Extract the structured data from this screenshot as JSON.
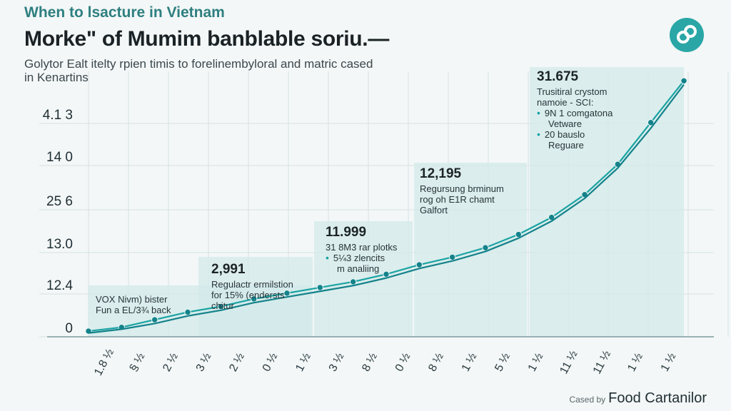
{
  "header": {
    "brand": "When to lsacture in Vietnam",
    "title": "Morke\" of Mumim banblable soriu.—",
    "subtitle_line1": "Golytor Ealt itelty rpien timis to forelinembyloral and matric cased",
    "subtitle_line2": "in Kenartins"
  },
  "footer": {
    "credit_prefix": "Cased by",
    "credit_name": "Food Cartanilor"
  },
  "colors": {
    "accent": "#1aa3a3",
    "accent_dark": "#14828a",
    "panel": "#d4eaea",
    "grid": "#d7e2e3"
  },
  "icons": {
    "logo": "link-circle-icon"
  },
  "chart_data": {
    "type": "line",
    "y_tick_labels": [
      "0",
      "12.4",
      "13.0",
      "25 6",
      "14 0",
      "4.1 3"
    ],
    "x_tick_labels": [
      "1.8 ½",
      "§ ½",
      "2 ½",
      "3 ½",
      "2 ½",
      "0 ½",
      "1 ½",
      "3 ½",
      "8 ½",
      "0 ½",
      "8 ½",
      "1 ½",
      "5 ½",
      "1 ½",
      "11 ½",
      "11 ½",
      "1 ½",
      "1 ½"
    ],
    "grid": true,
    "series": [
      {
        "values": [
          0.3,
          0.5,
          0.9,
          1.3,
          1.6,
          2.0,
          2.3,
          2.6,
          2.9,
          3.3,
          3.8,
          4.2,
          4.7,
          5.4,
          6.3,
          7.5,
          9.1,
          11.3,
          13.5
        ]
      },
      {
        "values": [
          0.2,
          0.4,
          0.7,
          1.1,
          1.4,
          1.8,
          2.1,
          2.4,
          2.7,
          3.1,
          3.6,
          4.0,
          4.5,
          5.2,
          6.1,
          7.3,
          8.9,
          11.0,
          13.3
        ]
      }
    ],
    "annotations": [
      {
        "value": "",
        "lines": [
          "VOX Nivm) bister",
          "Fun a EL/3¾ back"
        ],
        "bullets": []
      },
      {
        "value": "2,991",
        "lines": [
          "Regulactr ermilstion",
          "for 15% (endersts",
          "chitur"
        ],
        "bullets": []
      },
      {
        "value": "11.999",
        "lines": [
          "31 8M3 rar plotks"
        ],
        "bullets": [
          "5¼3 zlencits",
          "m analiing"
        ]
      },
      {
        "value": "12,195",
        "lines": [
          "Regursung brminum",
          "rog oh E1R chamt",
          "Galfort"
        ],
        "bullets": []
      },
      {
        "value": "31.675",
        "lines": [
          "Trusitiral crystom",
          "namoie - SCI:"
        ],
        "bullets": [
          "9N 1 comgatona",
          "Vetware",
          "20 bauslo",
          "Reguare"
        ]
      }
    ]
  }
}
